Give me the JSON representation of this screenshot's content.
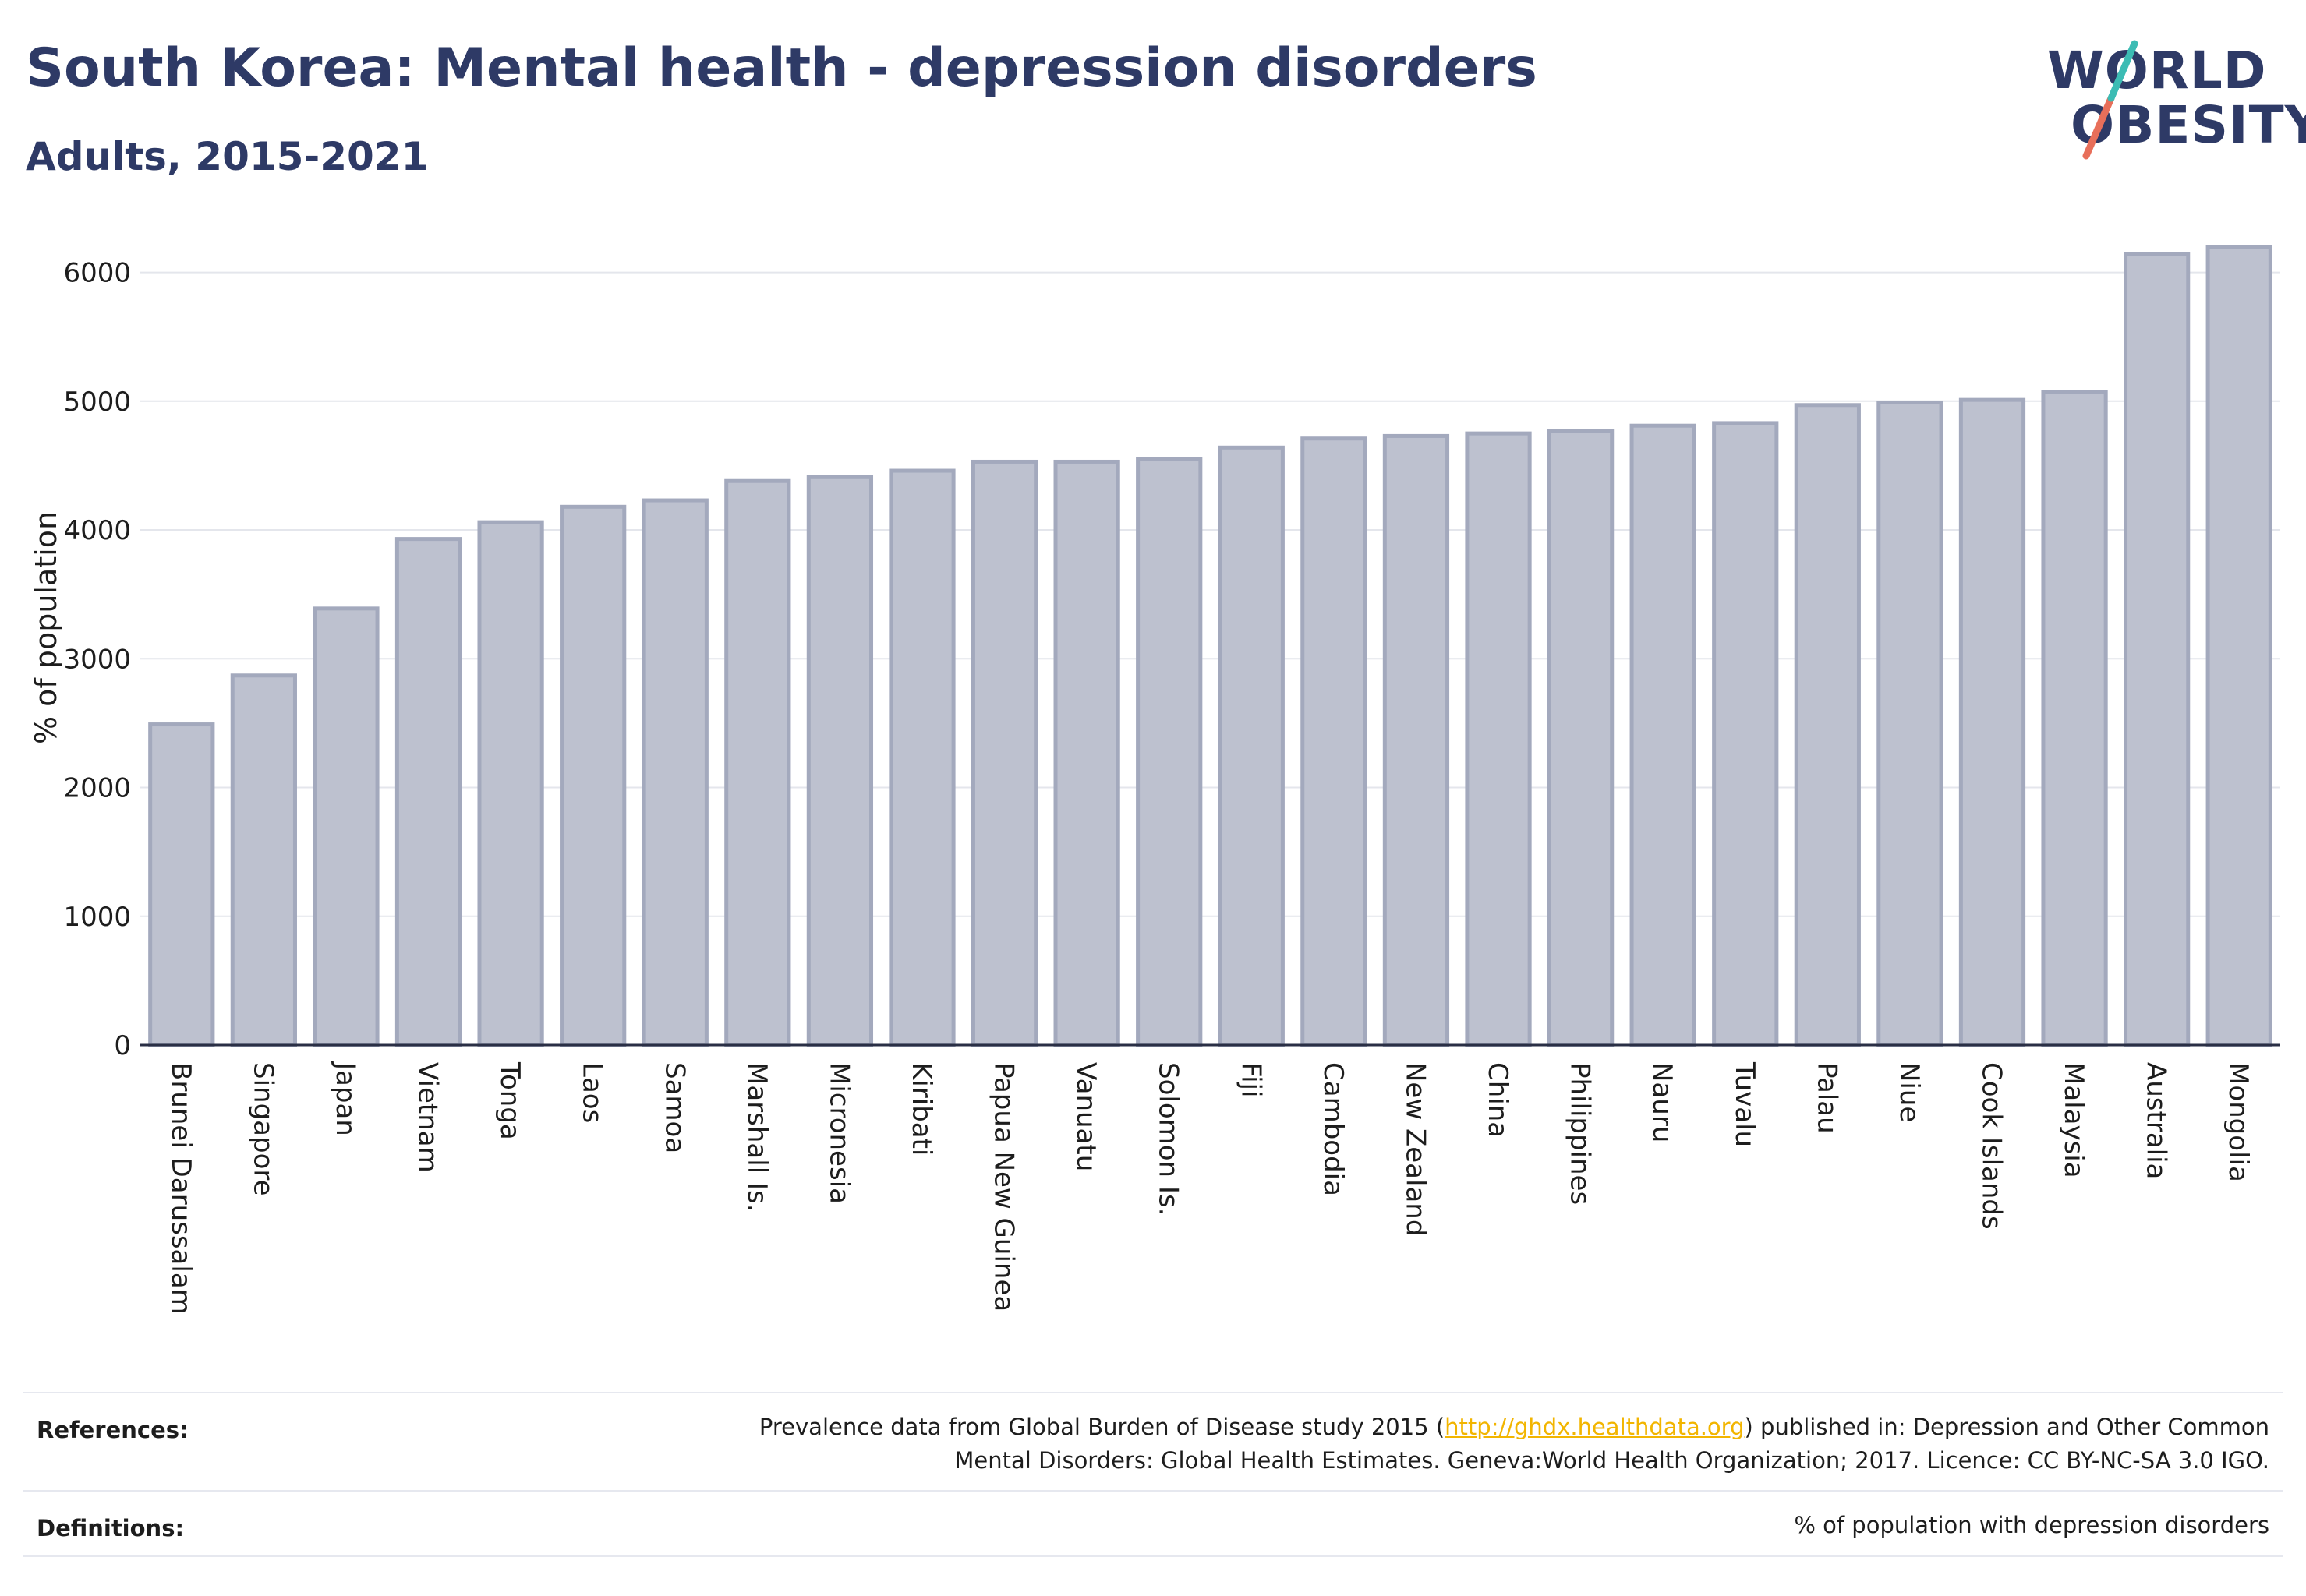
{
  "header": {
    "title": "South Korea: Mental health - depression disorders",
    "subtitle": "Adults, 2015-2021"
  },
  "logo": {
    "line1": "WORLD",
    "line2": "OBESITY"
  },
  "chart_data": {
    "type": "bar",
    "ylabel": "% of population",
    "xlabel": "",
    "ylim": [
      0,
      6300
    ],
    "yticks": [
      0,
      1000,
      2000,
      3000,
      4000,
      5000,
      6000
    ],
    "grid": true,
    "bar_color": "#bdc1cf",
    "bar_edge_color": "#a3a9bd",
    "categories": [
      "Brunei Darussalam",
      "Singapore",
      "Japan",
      "Vietnam",
      "Tonga",
      "Laos",
      "Samoa",
      "Marshall Is.",
      "Micronesia",
      "Kiribati",
      "Papua New Guinea",
      "Vanuatu",
      "Solomon Is.",
      "Fiji",
      "Cambodia",
      "New Zealand",
      "China",
      "Philippines",
      "Nauru",
      "Tuvalu",
      "Palau",
      "Niue",
      "Cook Islands",
      "Malaysia",
      "Australia",
      "Mongolia"
    ],
    "values": [
      2490,
      2870,
      3390,
      3930,
      4060,
      4180,
      4230,
      4380,
      4410,
      4460,
      4530,
      4530,
      4550,
      4640,
      4710,
      4730,
      4750,
      4770,
      4810,
      4830,
      4970,
      4990,
      5010,
      5070,
      6140,
      6200
    ]
  },
  "footer": {
    "references_label": "References:",
    "references_line1_before": "Prevalence data from Global Burden of Disease study 2015 (",
    "references_link": "http://ghdx.healthdata.org",
    "references_line1_after": ") published in: Depression and Other Common",
    "references_line2": "Mental Disorders: Global Health Estimates. Geneva:World Health Organization; 2017. Licence: CC BY-NC-SA 3.0 IGO.",
    "definitions_label": "Definitions:",
    "definitions_text": "% of population with depression disorders"
  }
}
